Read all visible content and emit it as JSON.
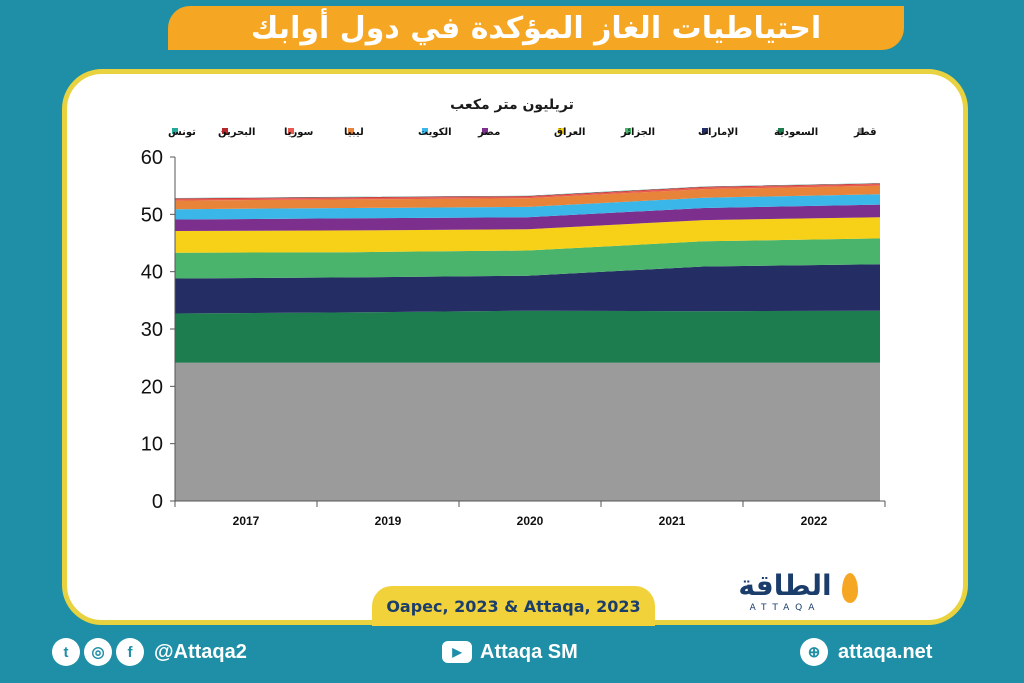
{
  "title": "احتياطيات الغاز المؤكدة في دول أوابك",
  "source": "Oapec, 2023 & Attaqa, 2023",
  "logo": {
    "arabic": "الطاقة",
    "latin": "ATTAQA"
  },
  "footer": {
    "social_handle": "@Attaqa2",
    "youtube": "Attaqa SM",
    "website": "attaqa.net",
    "icons": [
      "twitter-icon",
      "instagram-icon",
      "facebook-icon",
      "youtube-icon",
      "globe-icon"
    ]
  },
  "colors": {
    "background": "#1e8fa6",
    "banner": "#f5a623",
    "frame": "#e9d23f"
  },
  "chart_data": {
    "type": "area",
    "stacked": true,
    "title": "تريليون متر مكعب",
    "categories": [
      "2017",
      "2019",
      "2020",
      "2021",
      "2022"
    ],
    "ylim": [
      0,
      60
    ],
    "yticks": [
      "0",
      "10",
      "20",
      "30",
      "40",
      "50",
      "60"
    ],
    "grid": false,
    "legend_position": "top",
    "series": [
      {
        "name": "قطر",
        "color": "#9b9b9b",
        "values": [
          24.1,
          24.1,
          24.1,
          24.1,
          24.1
        ]
      },
      {
        "name": "السعودية",
        "color": "#1e7d4f",
        "values": [
          8.6,
          8.8,
          9.1,
          9.0,
          9.1
        ]
      },
      {
        "name": "الإمارات",
        "color": "#252e64",
        "values": [
          6.1,
          6.1,
          6.1,
          7.8,
          8.1
        ]
      },
      {
        "name": "الجزائر",
        "color": "#4ab36c",
        "values": [
          4.5,
          4.4,
          4.4,
          4.4,
          4.5
        ]
      },
      {
        "name": "العراق",
        "color": "#f7d117",
        "values": [
          3.8,
          3.8,
          3.7,
          3.7,
          3.7
        ]
      },
      {
        "name": "مصر",
        "color": "#7d2f8e",
        "values": [
          2.0,
          2.1,
          2.1,
          2.1,
          2.2
        ]
      },
      {
        "name": "الكويت",
        "color": "#3ab7e8",
        "values": [
          1.8,
          1.8,
          1.8,
          1.8,
          1.8
        ]
      },
      {
        "name": "ليبيا",
        "color": "#e8843a",
        "values": [
          1.5,
          1.5,
          1.5,
          1.5,
          1.5
        ]
      },
      {
        "name": "سوريا",
        "color": "#e85a4f",
        "values": [
          0.3,
          0.3,
          0.3,
          0.3,
          0.3
        ]
      },
      {
        "name": "البحرين",
        "color": "#b3282d",
        "values": [
          0.1,
          0.1,
          0.1,
          0.1,
          0.1
        ]
      },
      {
        "name": "تونس",
        "color": "#27a99a",
        "values": [
          0.05,
          0.05,
          0.05,
          0.05,
          0.05
        ]
      }
    ]
  }
}
